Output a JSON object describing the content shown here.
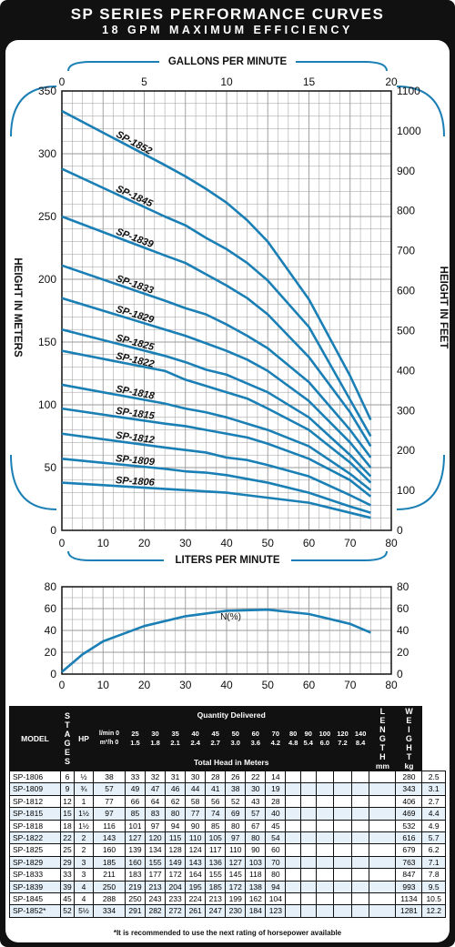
{
  "header": {
    "title": "SP SERIES PERFORMANCE CURVES",
    "subtitle": "18 GPM MAXIMUM EFFICIENCY"
  },
  "colors": {
    "curve": "#1a7fb5",
    "frame": "#111111",
    "grid": "#777777"
  },
  "chart_data": [
    {
      "type": "line",
      "top_axis_label": "GALLONS PER MINUTE",
      "xlabel": "LITERS PER MINUTE",
      "ylabel": "HEIGHT IN METERS",
      "y2label": "HEIGHT IN FEET",
      "xlim": [
        0,
        80
      ],
      "ylim": [
        0,
        350
      ],
      "top_xlim": [
        0,
        20
      ],
      "y2lim": [
        0,
        1100
      ],
      "x_ticks": [
        0,
        10,
        20,
        30,
        40,
        50,
        60,
        70,
        80
      ],
      "top_x_ticks": [
        0,
        5,
        10,
        15,
        20
      ],
      "y_ticks": [
        0,
        50,
        100,
        150,
        200,
        250,
        300,
        350
      ],
      "y2_ticks": [
        0,
        100,
        200,
        300,
        400,
        500,
        600,
        700,
        800,
        900,
        1000,
        1100
      ],
      "grid": true,
      "series": [
        {
          "name": "SP-1852",
          "x": [
            0,
            25,
            30,
            35,
            40,
            45,
            50,
            60,
            70,
            75
          ],
          "y": [
            334,
            291,
            282,
            272,
            261,
            247,
            230,
            184,
            123,
            88
          ]
        },
        {
          "name": "SP-1845",
          "x": [
            0,
            25,
            30,
            35,
            40,
            45,
            50,
            60,
            70,
            75
          ],
          "y": [
            288,
            250,
            243,
            233,
            224,
            213,
            199,
            162,
            104,
            75
          ]
        },
        {
          "name": "SP-1839",
          "x": [
            0,
            25,
            30,
            35,
            40,
            45,
            50,
            60,
            70,
            75
          ],
          "y": [
            250,
            219,
            213,
            204,
            195,
            185,
            172,
            138,
            94,
            67
          ]
        },
        {
          "name": "SP-1833",
          "x": [
            0,
            25,
            30,
            35,
            40,
            45,
            50,
            60,
            70,
            75
          ],
          "y": [
            211,
            183,
            177,
            172,
            164,
            155,
            145,
            118,
            80,
            58
          ]
        },
        {
          "name": "SP-1829",
          "x": [
            0,
            25,
            30,
            35,
            40,
            45,
            50,
            60,
            70,
            75
          ],
          "y": [
            185,
            160,
            155,
            149,
            143,
            136,
            127,
            103,
            70,
            50
          ]
        },
        {
          "name": "SP-1825",
          "x": [
            0,
            25,
            30,
            35,
            40,
            45,
            50,
            60,
            70,
            75
          ],
          "y": [
            160,
            139,
            134,
            128,
            124,
            117,
            110,
            90,
            60,
            43
          ]
        },
        {
          "name": "SP-1822",
          "x": [
            0,
            25,
            30,
            35,
            40,
            45,
            50,
            60,
            70,
            75
          ],
          "y": [
            143,
            127,
            120,
            115,
            110,
            105,
            97,
            80,
            54,
            38
          ]
        },
        {
          "name": "SP-1818",
          "x": [
            0,
            25,
            30,
            35,
            40,
            45,
            50,
            60,
            70,
            75
          ],
          "y": [
            116,
            101,
            97,
            94,
            90,
            85,
            80,
            67,
            45,
            32
          ]
        },
        {
          "name": "SP-1815",
          "x": [
            0,
            25,
            30,
            35,
            40,
            45,
            50,
            60,
            70,
            75
          ],
          "y": [
            97,
            85,
            83,
            80,
            77,
            74,
            69,
            57,
            40,
            27
          ]
        },
        {
          "name": "SP-1812",
          "x": [
            0,
            25,
            30,
            35,
            40,
            45,
            50,
            60,
            70,
            75
          ],
          "y": [
            77,
            66,
            64,
            62,
            58,
            56,
            52,
            43,
            28,
            20
          ]
        },
        {
          "name": "SP-1809",
          "x": [
            0,
            25,
            30,
            35,
            40,
            45,
            50,
            60,
            70,
            75
          ],
          "y": [
            57,
            49,
            47,
            46,
            44,
            41,
            38,
            30,
            19,
            14
          ]
        },
        {
          "name": "SP-1806",
          "x": [
            0,
            25,
            30,
            35,
            40,
            45,
            50,
            60,
            70,
            75
          ],
          "y": [
            38,
            33,
            32,
            31,
            30,
            28,
            26,
            22,
            14,
            10
          ]
        }
      ]
    },
    {
      "type": "line",
      "xlim": [
        0,
        80
      ],
      "ylim": [
        0,
        80
      ],
      "x_ticks": [
        0,
        10,
        20,
        30,
        40,
        50,
        60,
        70,
        80
      ],
      "y_ticks": [
        0,
        20,
        40,
        60,
        80
      ],
      "grid": true,
      "annotation": "N(%)",
      "series": [
        {
          "name": "N(%)",
          "x": [
            0,
            5,
            10,
            20,
            30,
            40,
            50,
            60,
            70,
            75
          ],
          "y": [
            2,
            18,
            30,
            44,
            53,
            58,
            59,
            55,
            46,
            38
          ]
        }
      ]
    }
  ],
  "table": {
    "head": {
      "model": "MODEL",
      "stages": "STAGES",
      "hp": "HP",
      "quantity": "Quantity Delivered",
      "lmin_label": "l/min 0",
      "m3h_label": "m³/h 0",
      "lmin": [
        "25",
        "30",
        "35",
        "40",
        "45",
        "50",
        "60",
        "70",
        "80",
        "90",
        "100",
        "120",
        "140"
      ],
      "m3h": [
        "1.5",
        "1.8",
        "2.1",
        "2.4",
        "2.7",
        "3.0",
        "3.6",
        "4.2",
        "4.8",
        "5.4",
        "6.0",
        "7.2",
        "8.4"
      ],
      "total_head": "Total Head in Meters",
      "length": "LENGTH",
      "length_unit": "mm",
      "weight": "WEIGHT",
      "weight_unit": "kg"
    },
    "rows": [
      [
        "SP-1806",
        "6",
        "½",
        "38",
        "33",
        "32",
        "31",
        "30",
        "28",
        "26",
        "22",
        "14",
        "",
        "",
        "",
        "",
        "",
        "",
        "280",
        "2.5"
      ],
      [
        "SP-1809",
        "9",
        "¾",
        "57",
        "49",
        "47",
        "46",
        "44",
        "41",
        "38",
        "30",
        "19",
        "",
        "",
        "",
        "",
        "",
        "",
        "343",
        "3.1"
      ],
      [
        "SP-1812",
        "12",
        "1",
        "77",
        "66",
        "64",
        "62",
        "58",
        "56",
        "52",
        "43",
        "28",
        "",
        "",
        "",
        "",
        "",
        "",
        "406",
        "2.7"
      ],
      [
        "SP-1815",
        "15",
        "1½",
        "97",
        "85",
        "83",
        "80",
        "77",
        "74",
        "69",
        "57",
        "40",
        "",
        "",
        "",
        "",
        "",
        "",
        "469",
        "4.4"
      ],
      [
        "SP-1818",
        "18",
        "1½",
        "116",
        "101",
        "97",
        "94",
        "90",
        "85",
        "80",
        "67",
        "45",
        "",
        "",
        "",
        "",
        "",
        "",
        "532",
        "4.9"
      ],
      [
        "SP-1822",
        "22",
        "2",
        "143",
        "127",
        "120",
        "115",
        "110",
        "105",
        "97",
        "80",
        "54",
        "",
        "",
        "",
        "",
        "",
        "",
        "616",
        "5.7"
      ],
      [
        "SP-1825",
        "25",
        "2",
        "160",
        "139",
        "134",
        "128",
        "124",
        "117",
        "110",
        "90",
        "60",
        "",
        "",
        "",
        "",
        "",
        "",
        "679",
        "6.2"
      ],
      [
        "SP-1829",
        "29",
        "3",
        "185",
        "160",
        "155",
        "149",
        "143",
        "136",
        "127",
        "103",
        "70",
        "",
        "",
        "",
        "",
        "",
        "",
        "763",
        "7.1"
      ],
      [
        "SP-1833",
        "33",
        "3",
        "211",
        "183",
        "177",
        "172",
        "164",
        "155",
        "145",
        "118",
        "80",
        "",
        "",
        "",
        "",
        "",
        "",
        "847",
        "7.8"
      ],
      [
        "SP-1839",
        "39",
        "4",
        "250",
        "219",
        "213",
        "204",
        "195",
        "185",
        "172",
        "138",
        "94",
        "",
        "",
        "",
        "",
        "",
        "",
        "993",
        "9.5"
      ],
      [
        "SP-1845",
        "45",
        "4",
        "288",
        "250",
        "243",
        "233",
        "224",
        "213",
        "199",
        "162",
        "104",
        "",
        "",
        "",
        "",
        "",
        "",
        "1134",
        "10.5"
      ],
      [
        "SP-1852*",
        "52",
        "5½",
        "334",
        "291",
        "282",
        "272",
        "261",
        "247",
        "230",
        "184",
        "123",
        "",
        "",
        "",
        "",
        "",
        "",
        "1281",
        "12.2"
      ]
    ],
    "footnote": "*It is recommended to use the next rating of horsepower available"
  }
}
